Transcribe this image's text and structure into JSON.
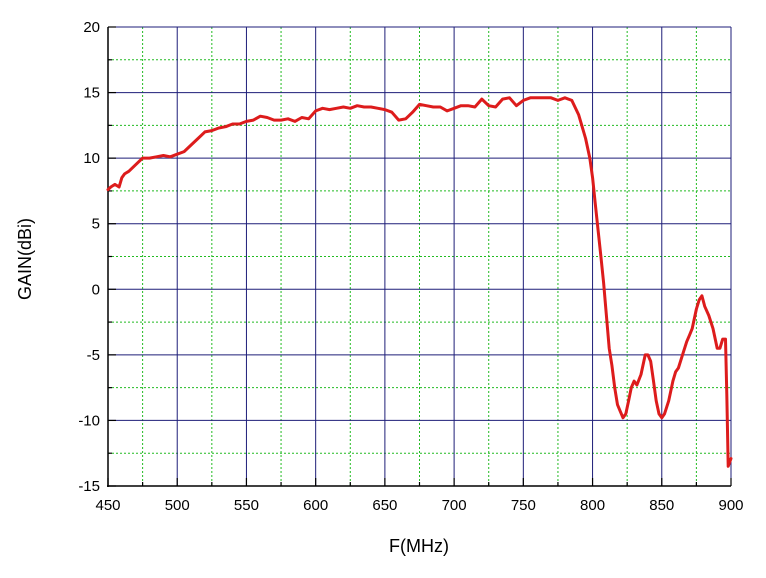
{
  "chart_data": {
    "type": "line",
    "xlabel": "F(MHz)",
    "ylabel": "GAIN(dBi)",
    "xlim": [
      450,
      900
    ],
    "ylim": [
      -15,
      20
    ],
    "xticks": [
      450,
      500,
      550,
      600,
      650,
      700,
      750,
      800,
      850,
      900
    ],
    "yticks": [
      -15,
      -10,
      -5,
      0,
      5,
      10,
      15,
      20
    ],
    "grid": true,
    "colors": {
      "line": "#dd1c1c",
      "major_grid": "#1e1e78",
      "minor_grid": "#22bb22",
      "axis": "#000000"
    },
    "series": [
      {
        "x": [
          450,
          452,
          455,
          458,
          460,
          462,
          465,
          470,
          475,
          480,
          485,
          490,
          495,
          500,
          505,
          510,
          515,
          520,
          525,
          530,
          535,
          540,
          545,
          550,
          555,
          560,
          565,
          570,
          575,
          580,
          585,
          590,
          595,
          600,
          605,
          610,
          615,
          620,
          625,
          630,
          635,
          640,
          645,
          650,
          655,
          660,
          665,
          670,
          675,
          680,
          685,
          690,
          695,
          700,
          705,
          710,
          715,
          720,
          725,
          730,
          735,
          740,
          745,
          750,
          755,
          760,
          765,
          770,
          775,
          780,
          785,
          790,
          795,
          798,
          800,
          802,
          804,
          806,
          808,
          810,
          812,
          814,
          816,
          818,
          820,
          822,
          824,
          826,
          828,
          830,
          832,
          835,
          838,
          840,
          842,
          844,
          846,
          848,
          850,
          852,
          855,
          858,
          860,
          862,
          865,
          868,
          870,
          872,
          875,
          877,
          879,
          881,
          884,
          887,
          890,
          892,
          894,
          896,
          897,
          898,
          899,
          900
        ],
        "values": [
          7.6,
          7.8,
          8.0,
          7.8,
          8.5,
          8.8,
          9.0,
          9.5,
          10.0,
          10.0,
          10.1,
          10.2,
          10.1,
          10.3,
          10.5,
          11.0,
          11.5,
          12.0,
          12.1,
          12.3,
          12.4,
          12.6,
          12.6,
          12.8,
          12.9,
          13.2,
          13.1,
          12.9,
          12.9,
          13.0,
          12.8,
          13.1,
          13.0,
          13.6,
          13.8,
          13.7,
          13.8,
          13.9,
          13.8,
          14.0,
          13.9,
          13.9,
          13.8,
          13.7,
          13.5,
          12.9,
          13.0,
          13.5,
          14.1,
          14.0,
          13.9,
          13.9,
          13.6,
          13.8,
          14.0,
          14.0,
          13.9,
          14.5,
          14.0,
          13.9,
          14.5,
          14.6,
          14.0,
          14.4,
          14.6,
          14.6,
          14.6,
          14.6,
          14.4,
          14.6,
          14.4,
          13.3,
          11.5,
          10.0,
          8.5,
          6.5,
          4.5,
          2.5,
          0.5,
          -2.0,
          -4.5,
          -5.8,
          -7.5,
          -8.8,
          -9.3,
          -9.8,
          -9.5,
          -8.5,
          -7.5,
          -7.0,
          -7.3,
          -6.5,
          -5.0,
          -5.0,
          -5.5,
          -7.0,
          -8.5,
          -9.5,
          -9.8,
          -9.5,
          -8.5,
          -7.0,
          -6.3,
          -6.0,
          -5.0,
          -4.0,
          -3.5,
          -3.0,
          -1.5,
          -0.8,
          -0.5,
          -1.3,
          -2.0,
          -3.0,
          -4.5,
          -4.5,
          -3.8,
          -3.8,
          -8.0,
          -13.5,
          -13.2,
          -12.9
        ]
      }
    ]
  }
}
